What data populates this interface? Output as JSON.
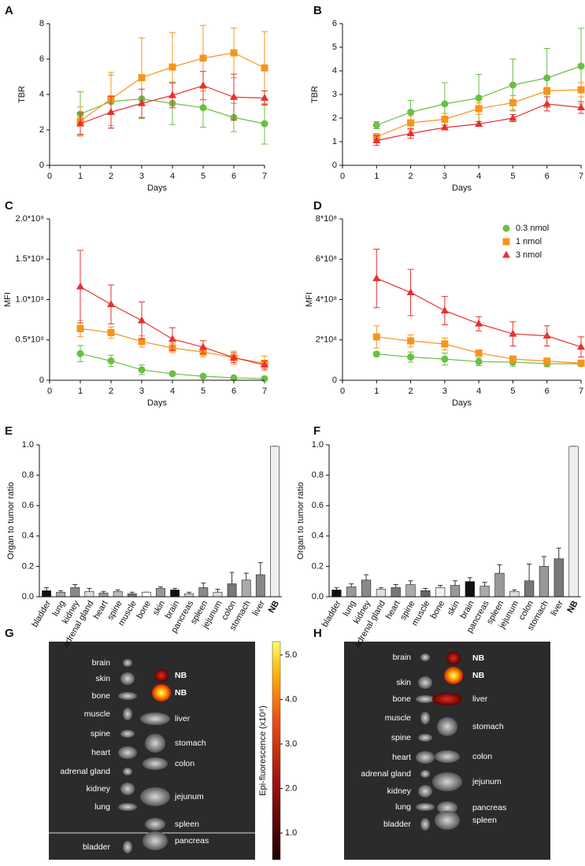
{
  "chart_data": [
    {
      "type": "line",
      "panel": "A",
      "xlabel": "Days",
      "ylabel": "TBR",
      "x": [
        1,
        2,
        3,
        4,
        5,
        6,
        7
      ],
      "xlim": [
        0,
        7
      ],
      "xticks": [
        0,
        1,
        2,
        3,
        4,
        5,
        6,
        7
      ],
      "ylim": [
        0,
        8
      ],
      "yticks": [
        0,
        2,
        4,
        6,
        8
      ],
      "series": [
        {
          "name": "0.3 nmol",
          "color": "#6abf45",
          "marker": "circle",
          "values": [
            2.9,
            3.6,
            3.75,
            3.5,
            3.25,
            2.7,
            2.35
          ],
          "errors": [
            1.25,
            1.5,
            1.1,
            1.2,
            1.1,
            0.8,
            1.15
          ]
        },
        {
          "name": "1 nmol",
          "color": "#f7941d",
          "marker": "square",
          "values": [
            2.5,
            3.75,
            4.95,
            5.55,
            6.05,
            6.35,
            5.5
          ],
          "errors": [
            0.8,
            1.5,
            2.25,
            1.95,
            1.85,
            1.4,
            2.05
          ]
        },
        {
          "name": "3 nmol",
          "color": "#e8312f",
          "marker": "triangle",
          "values": [
            2.35,
            3.0,
            3.5,
            3.95,
            4.5,
            3.85,
            3.8
          ],
          "errors": [
            0.6,
            0.9,
            0.8,
            0.7,
            0.8,
            1.3,
            0.4
          ]
        }
      ]
    },
    {
      "type": "line",
      "panel": "B",
      "xlabel": "Days",
      "ylabel": "TBR",
      "x": [
        1,
        2,
        3,
        4,
        5,
        6,
        7
      ],
      "xlim": [
        0,
        7
      ],
      "xticks": [
        0,
        1,
        2,
        3,
        4,
        5,
        6,
        7
      ],
      "ylim": [
        0,
        6
      ],
      "yticks": [
        0,
        1,
        2,
        3,
        4,
        5,
        6
      ],
      "series": [
        {
          "name": "0.3 nmol",
          "color": "#6abf45",
          "marker": "circle",
          "values": [
            1.7,
            2.25,
            2.6,
            2.85,
            3.4,
            3.7,
            4.2
          ],
          "errors": [
            0.15,
            0.5,
            0.9,
            1.0,
            1.1,
            1.25,
            1.6
          ]
        },
        {
          "name": "1 nmol",
          "color": "#f7941d",
          "marker": "square",
          "values": [
            1.2,
            1.8,
            1.95,
            2.4,
            2.65,
            3.15,
            3.2
          ],
          "errors": [
            0.15,
            0.3,
            0.25,
            0.25,
            0.3,
            0.15,
            0.3
          ]
        },
        {
          "name": "3 nmol",
          "color": "#e8312f",
          "marker": "triangle",
          "values": [
            1.05,
            1.35,
            1.6,
            1.75,
            2.0,
            2.6,
            2.45
          ],
          "errors": [
            0.2,
            0.2,
            0.1,
            0.1,
            0.15,
            0.3,
            0.25
          ]
        }
      ]
    },
    {
      "type": "line",
      "panel": "C",
      "xlabel": "Days",
      "ylabel": "MFI",
      "x": [
        1,
        2,
        3,
        4,
        5,
        6,
        7
      ],
      "xlim": [
        0,
        7
      ],
      "xticks": [
        0,
        1,
        2,
        3,
        4,
        5,
        6,
        7
      ],
      "ylim": [
        0,
        2000000000
      ],
      "yticks": [
        0,
        {
          "value": 500000000,
          "label": "0.5*10⁹"
        },
        {
          "value": 1000000000,
          "label": "1.0*10⁹"
        },
        {
          "value": 1500000000,
          "label": "1.5*10⁹"
        },
        {
          "value": 2000000000,
          "label": "2.0*10⁹"
        }
      ],
      "series": [
        {
          "name": "0.3 nmol",
          "color": "#6abf45",
          "marker": "circle",
          "values": [
            330000000,
            240000000,
            130000000,
            80000000,
            50000000,
            30000000,
            20000000
          ],
          "errors": [
            100000000,
            70000000,
            60000000,
            20000000,
            10000000,
            10000000,
            10000000
          ]
        },
        {
          "name": "1 nmol",
          "color": "#f7941d",
          "marker": "square",
          "values": [
            640000000,
            590000000,
            480000000,
            400000000,
            350000000,
            280000000,
            210000000
          ],
          "errors": [
            100000000,
            70000000,
            70000000,
            60000000,
            60000000,
            80000000,
            90000000
          ]
        },
        {
          "name": "3 nmol",
          "color": "#e8312f",
          "marker": "triangle",
          "values": [
            1160000000,
            940000000,
            740000000,
            510000000,
            410000000,
            280000000,
            190000000
          ],
          "errors": [
            450000000,
            240000000,
            230000000,
            140000000,
            80000000,
            60000000,
            50000000
          ]
        }
      ]
    },
    {
      "type": "line",
      "panel": "D",
      "xlabel": "Days",
      "ylabel": "MFI",
      "legend": "top-right",
      "x": [
        1,
        2,
        3,
        4,
        5,
        6,
        7
      ],
      "xlim": [
        0,
        7
      ],
      "xticks": [
        0,
        1,
        2,
        3,
        4,
        5,
        6,
        7
      ],
      "ylim": [
        0,
        800000000
      ],
      "yticks": [
        0,
        {
          "value": 200000000,
          "label": "2*10⁸"
        },
        {
          "value": 400000000,
          "label": "4*10⁸"
        },
        {
          "value": 600000000,
          "label": "6*10⁸"
        },
        {
          "value": 800000000,
          "label": "8*10⁸"
        }
      ],
      "series": [
        {
          "name": "0.3 nmol",
          "color": "#6abf45",
          "marker": "circle",
          "values": [
            130000000,
            115000000,
            105000000,
            92000000,
            90000000,
            82000000,
            82000000
          ],
          "errors": [
            10000000,
            25000000,
            30000000,
            20000000,
            20000000,
            15000000,
            10000000
          ]
        },
        {
          "name": "1 nmol",
          "color": "#f7941d",
          "marker": "square",
          "values": [
            215000000,
            195000000,
            180000000,
            135000000,
            105000000,
            95000000,
            85000000
          ],
          "errors": [
            55000000,
            30000000,
            30000000,
            10000000,
            10000000,
            10000000,
            10000000
          ]
        },
        {
          "name": "3 nmol",
          "color": "#e8312f",
          "marker": "triangle",
          "values": [
            505000000,
            435000000,
            345000000,
            280000000,
            230000000,
            220000000,
            165000000
          ],
          "errors": [
            145000000,
            115000000,
            70000000,
            35000000,
            60000000,
            50000000,
            50000000
          ]
        }
      ]
    },
    {
      "type": "bar",
      "panel": "E",
      "ylabel": "Organ to tumor ratio",
      "categories": [
        "bladder",
        "lung",
        "kidney",
        "adrenal gland",
        "heart",
        "spine",
        "muscle",
        "bone",
        "skin",
        "brain",
        "pancreas",
        "spleen",
        "jejunum",
        "colon",
        "stomach",
        "liver",
        "NB"
      ],
      "values": [
        0.04,
        0.03,
        0.06,
        0.035,
        0.025,
        0.035,
        0.02,
        0.03,
        0.055,
        0.045,
        0.02,
        0.06,
        0.03,
        0.085,
        0.11,
        0.145,
        0.99
      ],
      "errors": [
        0.02,
        0.01,
        0.02,
        0.02,
        0.01,
        0.01,
        0.01,
        0,
        0.01,
        0.01,
        0.01,
        0.03,
        0.02,
        0.075,
        0.045,
        0.08,
        0
      ],
      "colors": [
        "#111111",
        "#aaaaaa",
        "#888888",
        "#dddddd",
        "#999999",
        "#bbbbbb",
        "#777777",
        "#ffffff",
        "#999999",
        "#111111",
        "#cccccc",
        "#888888",
        "#dddddd",
        "#777777",
        "#aaaaaa",
        "#888888",
        "#eeeeee"
      ],
      "ylim": [
        0,
        1
      ],
      "yticks": [
        {
          "value": 0,
          "label": "0.0"
        },
        0.2,
        0.4,
        0.6,
        0.8,
        {
          "value": 1,
          "label": "1.0"
        }
      ]
    },
    {
      "type": "bar",
      "panel": "F",
      "ylabel": "Organ to tumor ratio",
      "categories": [
        "bladder",
        "lung",
        "kidney",
        "adrenal gland",
        "heart",
        "spine",
        "muscle",
        "bone",
        "skin",
        "brain",
        "pancreas",
        "spleen",
        "jejunum",
        "colon",
        "stomach",
        "liver",
        "NB"
      ],
      "values": [
        0.045,
        0.065,
        0.11,
        0.05,
        0.06,
        0.08,
        0.04,
        0.06,
        0.075,
        0.1,
        0.07,
        0.155,
        0.035,
        0.105,
        0.2,
        0.25,
        0.99
      ],
      "errors": [
        0.015,
        0.02,
        0.035,
        0.01,
        0.02,
        0.025,
        0.015,
        0.015,
        0.03,
        0.025,
        0.025,
        0.055,
        0.01,
        0.11,
        0.065,
        0.07,
        0
      ],
      "colors": [
        "#111111",
        "#999999",
        "#888888",
        "#dddddd",
        "#777777",
        "#aaaaaa",
        "#666666",
        "#eeeeee",
        "#999999",
        "#111111",
        "#aaaaaa",
        "#999999",
        "#dddddd",
        "#777777",
        "#999999",
        "#777777",
        "#eeeeee"
      ],
      "ylim": [
        0,
        1
      ],
      "yticks": [
        {
          "value": 0,
          "label": "0.0"
        },
        0.2,
        0.4,
        0.6,
        0.8,
        {
          "value": 1,
          "label": "1.0"
        }
      ]
    }
  ],
  "images": [
    {
      "panel": "G",
      "left_labels": [
        "brain",
        "skin",
        "bone",
        "muscle",
        "spine",
        "heart",
        "adrenal gland",
        "kidney",
        "lung",
        "bladder"
      ],
      "right_labels": [
        "NB",
        "NB",
        "liver",
        "stomach",
        "colon",
        "jejunum",
        "spleen",
        "pancreas"
      ],
      "colorbar": {
        "label": "Epi-fluorescence (x10⁸)",
        "ylim": [
          0.4,
          5.3
        ],
        "ticks": [
          {
            "value": 1,
            "label": "1.0"
          },
          {
            "value": 2,
            "label": "2.0"
          },
          {
            "value": 3,
            "label": "3.0"
          },
          {
            "value": 4,
            "label": "4.0"
          },
          {
            "value": 5,
            "label": "5.0"
          }
        ]
      }
    },
    {
      "panel": "H",
      "left_labels": [
        "brain",
        "skin",
        "bone",
        "muscle",
        "spine",
        "heart",
        "adrenal gland",
        "kidney",
        "lung",
        "bladder"
      ],
      "right_labels": [
        "NB",
        "NB",
        "liver",
        "stomach",
        "colon",
        "jejunum",
        "pancreas",
        "spleen"
      ]
    }
  ]
}
